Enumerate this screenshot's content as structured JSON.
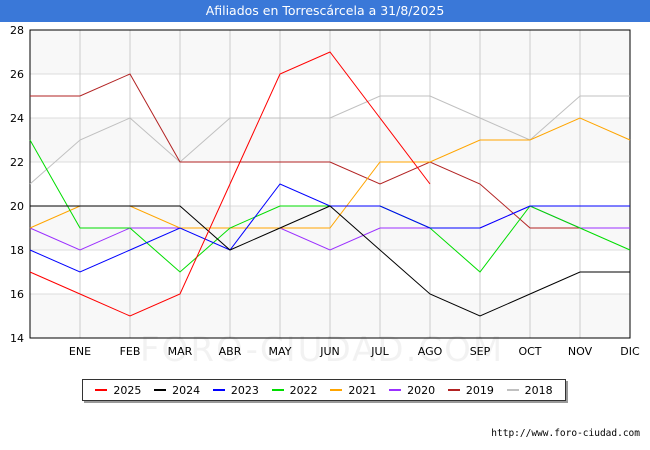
{
  "chart_data": {
    "type": "line",
    "title": "Afiliados en Torrescárcela a 31/8/2025",
    "xlabel": "",
    "ylabel": "",
    "categories": [
      "",
      "ENE",
      "FEB",
      "MAR",
      "ABR",
      "MAY",
      "JUN",
      "JUL",
      "AGO",
      "SEP",
      "OCT",
      "NOV",
      "DIC"
    ],
    "ylim": [
      14,
      28
    ],
    "yticks": [
      14,
      16,
      18,
      20,
      22,
      24,
      26,
      28
    ],
    "grid": true,
    "legend_position": "bottom",
    "series": [
      {
        "name": "2025",
        "color": "#ff0000",
        "values": [
          17,
          16,
          15,
          16,
          21,
          26,
          27,
          24,
          21,
          null,
          null,
          null,
          null
        ]
      },
      {
        "name": "2024",
        "color": "#000000",
        "values": [
          20,
          20,
          20,
          20,
          18,
          19,
          20,
          18,
          16,
          15,
          16,
          17,
          17
        ]
      },
      {
        "name": "2023",
        "color": "#0000ff",
        "values": [
          18,
          17,
          18,
          19,
          18,
          21,
          20,
          20,
          19,
          19,
          20,
          20,
          20
        ]
      },
      {
        "name": "2022",
        "color": "#00dd00",
        "values": [
          23,
          19,
          19,
          17,
          19,
          20,
          20,
          20,
          19,
          17,
          20,
          19,
          18
        ]
      },
      {
        "name": "2021",
        "color": "#ffa500",
        "values": [
          19,
          20,
          20,
          19,
          19,
          19,
          19,
          22,
          22,
          23,
          23,
          24,
          23
        ]
      },
      {
        "name": "2020",
        "color": "#9b30ff",
        "values": [
          19,
          18,
          19,
          19,
          19,
          19,
          18,
          19,
          19,
          19,
          20,
          19,
          19
        ]
      },
      {
        "name": "2019",
        "color": "#b22222",
        "values": [
          25,
          25,
          26,
          22,
          22,
          22,
          22,
          21,
          22,
          21,
          19,
          19,
          19
        ]
      },
      {
        "name": "2018",
        "color": "#c0c0c0",
        "values": [
          21,
          23,
          24,
          22,
          24,
          24,
          24,
          25,
          25,
          24,
          23,
          25,
          25
        ]
      }
    ]
  },
  "footer_url": "http://www.foro-ciudad.com",
  "watermark": "FORO-CIUDAD.COM"
}
